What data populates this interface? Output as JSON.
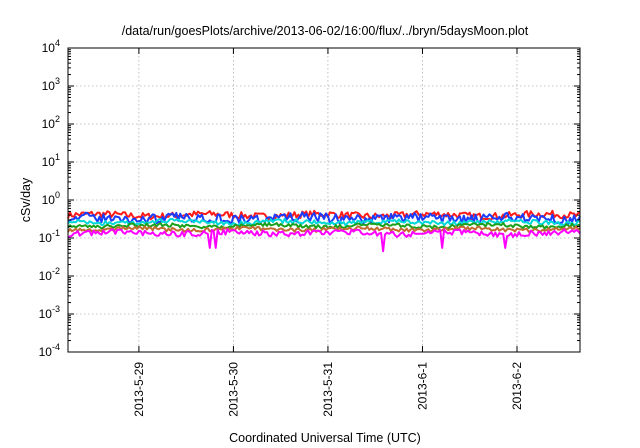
{
  "chart_data": {
    "type": "line",
    "title": "/data/run/goesPlots/archive/2013-06-02/16:00/flux/../bryn/5daysMoon.plot",
    "xlabel": "Coordinated Universal Time (UTC)",
    "ylabel": "cSv/day",
    "yscale": "log",
    "ylim": [
      0.0001,
      10000
    ],
    "y_ticks": [
      {
        "base": "10",
        "exp": "-4",
        "value": 0.0001
      },
      {
        "base": "10",
        "exp": "-3",
        "value": 0.001
      },
      {
        "base": "10",
        "exp": "-2",
        "value": 0.01
      },
      {
        "base": "10",
        "exp": "-1",
        "value": 0.1
      },
      {
        "base": "10",
        "exp": "0",
        "value": 1
      },
      {
        "base": "10",
        "exp": "1",
        "value": 10
      },
      {
        "base": "10",
        "exp": "2",
        "value": 100
      },
      {
        "base": "10",
        "exp": "3",
        "value": 1000
      },
      {
        "base": "10",
        "exp": "4",
        "value": 10000
      }
    ],
    "xlim": [
      "2013-05-28T06:00",
      "2013-06-02T16:00"
    ],
    "x_ticks": [
      {
        "label": "2013-5-29",
        "date": "2013-05-29T00:00"
      },
      {
        "label": "2013-5-30",
        "date": "2013-05-30T00:00"
      },
      {
        "label": "2013-5-31",
        "date": "2013-05-31T00:00"
      },
      {
        "label": "2013-6-1",
        "date": "2013-06-01T00:00"
      },
      {
        "label": "2013-6-2",
        "date": "2013-06-02T00:00"
      }
    ],
    "grid": true,
    "series": [
      {
        "color": "#ff1a1a",
        "base": 0.4,
        "noise": 0.18,
        "dips": []
      },
      {
        "color": "#1a3cff",
        "base": 0.33,
        "noise": 0.25,
        "dips": []
      },
      {
        "color": "#00d8d8",
        "base": 0.26,
        "noise": 0.12,
        "dips": []
      },
      {
        "color": "#1aa01a",
        "base": 0.21,
        "noise": 0.1,
        "dips": []
      },
      {
        "color": "#c06c30",
        "base": 0.17,
        "noise": 0.1,
        "dips": []
      },
      {
        "color": "#ff00ff",
        "base": 0.135,
        "noise": 0.15,
        "dips": [
          {
            "date": "2013-05-29T18:00",
            "value": 0.055
          },
          {
            "date": "2013-05-29T19:30",
            "value": 0.055
          },
          {
            "date": "2013-05-31T14:00",
            "value": 0.045
          },
          {
            "date": "2013-06-01T05:00",
            "value": 0.055
          },
          {
            "date": "2013-06-01T21:00",
            "value": 0.055
          }
        ]
      }
    ]
  }
}
